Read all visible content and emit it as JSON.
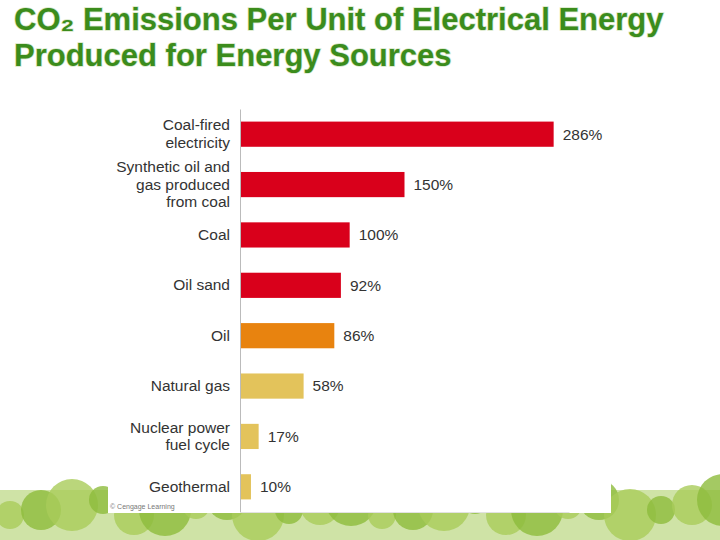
{
  "chart_data": {
    "type": "bar",
    "orientation": "horizontal",
    "title": "CO₂ Emissions Per Unit of Electrical Energy Produced for Energy Sources",
    "categories": [
      "Coal-fired electricity",
      "Synthetic oil and gas produced from coal",
      "Coal",
      "Oil sand",
      "Oil",
      "Natural gas",
      "Nuclear power fuel cycle",
      "Geothermal"
    ],
    "values": [
      286,
      150,
      100,
      92,
      86,
      58,
      17,
      10
    ],
    "value_labels": [
      "286%",
      "150%",
      "100%",
      "92%",
      "86%",
      "58%",
      "17%",
      "10%"
    ],
    "colors": [
      "#d9001b",
      "#d9001b",
      "#d9001b",
      "#d9001b",
      "#e8830f",
      "#e3c35b",
      "#e3c35b",
      "#e3c35b"
    ],
    "xlim": [
      0,
      300
    ],
    "data_labels": true,
    "tick_labels": "y",
    "grid": false,
    "annotations": [
      "© Cengage Learning"
    ]
  }
}
